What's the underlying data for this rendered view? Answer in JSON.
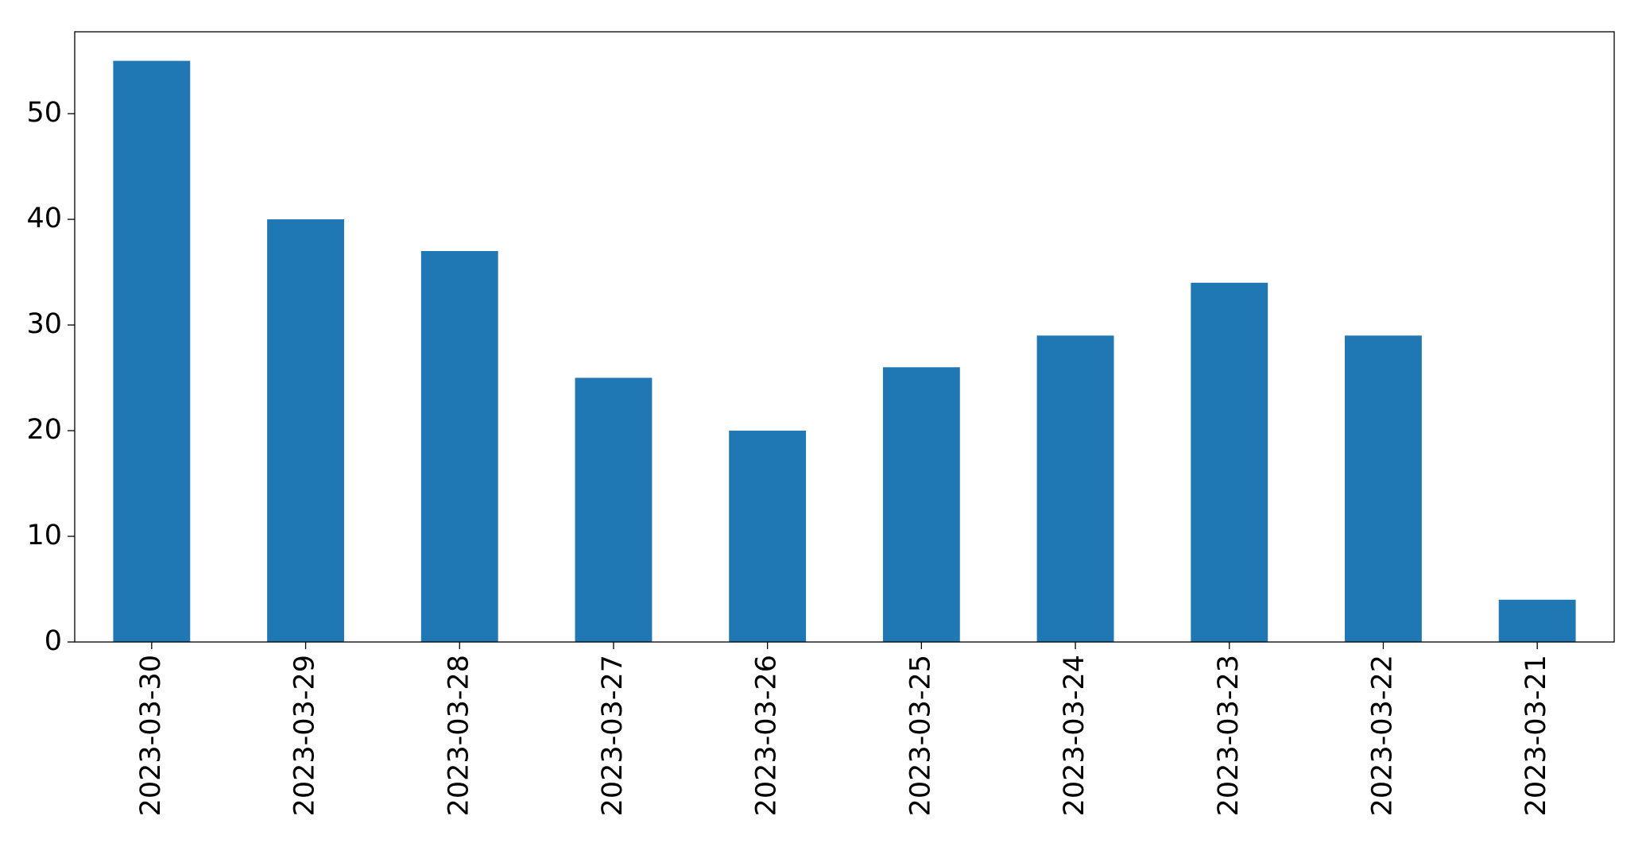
{
  "chart_data": {
    "type": "bar",
    "categories": [
      "2023-03-30",
      "2023-03-29",
      "2023-03-28",
      "2023-03-27",
      "2023-03-26",
      "2023-03-25",
      "2023-03-24",
      "2023-03-23",
      "2023-03-22",
      "2023-03-21"
    ],
    "values": [
      55,
      40,
      37,
      25,
      20,
      26,
      29,
      34,
      29,
      4
    ],
    "color": "#1f77b4",
    "ylim": [
      0,
      57.75
    ],
    "yticks": [
      0,
      10,
      20,
      30,
      40,
      50
    ],
    "grid": false
  }
}
